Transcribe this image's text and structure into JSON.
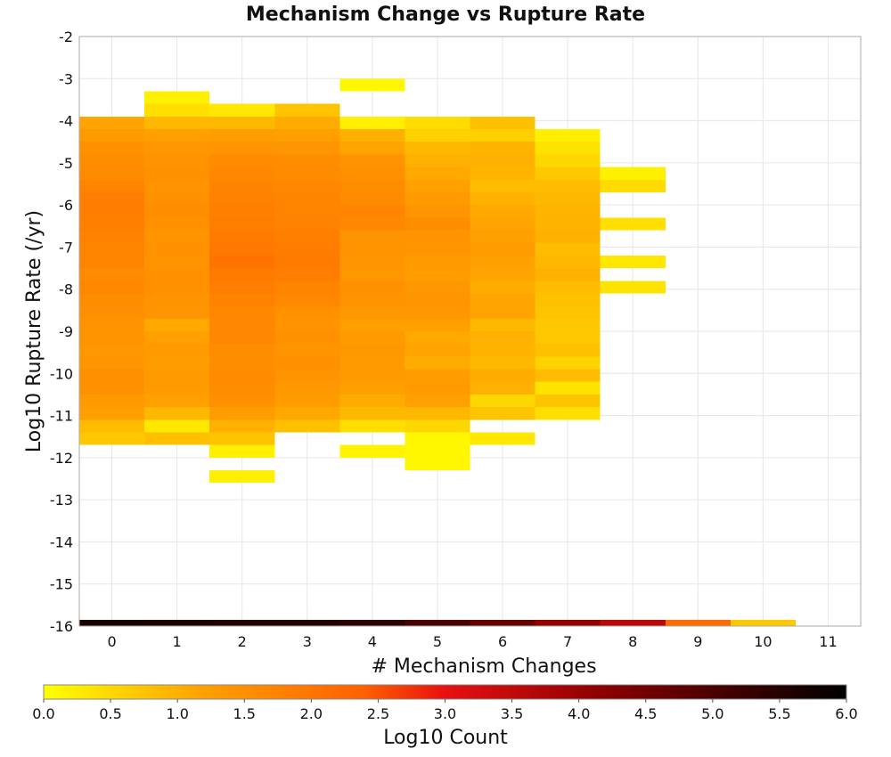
{
  "chart_data": {
    "type": "heatmap",
    "title": "Mechanism Change vs Rupture Rate",
    "xlabel": "# Mechanism Changes",
    "ylabel": "Log10 Rupture Rate (/yr)",
    "xlim": [
      -0.5,
      11.5
    ],
    "ylim": [
      -16,
      -2
    ],
    "x_ticks": [
      "0",
      "1",
      "2",
      "3",
      "4",
      "5",
      "6",
      "7",
      "8",
      "9",
      "10",
      "11"
    ],
    "y_ticks": [
      "-2",
      "-3",
      "-4",
      "-5",
      "-6",
      "-7",
      "-8",
      "-9",
      "-10",
      "-11",
      "-12",
      "-13",
      "-14",
      "-15",
      "-16"
    ],
    "grid": true,
    "y_bin_size": 0.3,
    "colorbar": {
      "label": "Log10 Count",
      "range": [
        0,
        6
      ],
      "ticks": [
        "0.0",
        "0.5",
        "1.0",
        "1.5",
        "2.0",
        "2.5",
        "3.0",
        "3.5",
        "4.0",
        "4.5",
        "5.0",
        "5.5",
        "6.0"
      ],
      "colors": [
        "#ffff00",
        "#ffa000",
        "#ff6000",
        "#e81010",
        "#8a0000",
        "#000000"
      ]
    },
    "columns": [
      {
        "x": 0,
        "bins": [
          {
            "y": -3.9,
            "v": 1.15
          },
          {
            "y": -4.2,
            "v": 1.3
          },
          {
            "y": -4.5,
            "v": 1.5
          },
          {
            "y": -4.8,
            "v": 1.55
          },
          {
            "y": -5.1,
            "v": 1.6
          },
          {
            "y": -5.4,
            "v": 1.7
          },
          {
            "y": -5.7,
            "v": 1.85
          },
          {
            "y": -6.0,
            "v": 1.85
          },
          {
            "y": -6.3,
            "v": 1.8
          },
          {
            "y": -6.6,
            "v": 1.75
          },
          {
            "y": -6.9,
            "v": 1.7
          },
          {
            "y": -7.2,
            "v": 1.7
          },
          {
            "y": -7.5,
            "v": 1.6
          },
          {
            "y": -7.8,
            "v": 1.65
          },
          {
            "y": -8.1,
            "v": 1.55
          },
          {
            "y": -8.4,
            "v": 1.5
          },
          {
            "y": -8.7,
            "v": 1.45
          },
          {
            "y": -9.0,
            "v": 1.45
          },
          {
            "y": -9.3,
            "v": 1.35
          },
          {
            "y": -9.6,
            "v": 1.4
          },
          {
            "y": -9.9,
            "v": 1.5
          },
          {
            "y": -10.2,
            "v": 1.5
          },
          {
            "y": -10.5,
            "v": 1.3
          },
          {
            "y": -10.8,
            "v": 1.2
          },
          {
            "y": -11.1,
            "v": 0.85
          },
          {
            "y": -11.4,
            "v": 0.7
          }
        ]
      },
      {
        "x": 1,
        "bins": [
          {
            "y": -3.3,
            "v": 0.2
          },
          {
            "y": -3.6,
            "v": 0.4
          },
          {
            "y": -3.9,
            "v": 0.9
          },
          {
            "y": -4.2,
            "v": 1.2
          },
          {
            "y": -4.5,
            "v": 1.35
          },
          {
            "y": -4.8,
            "v": 1.45
          },
          {
            "y": -5.1,
            "v": 1.5
          },
          {
            "y": -5.4,
            "v": 1.45
          },
          {
            "y": -5.7,
            "v": 1.5
          },
          {
            "y": -6.0,
            "v": 1.55
          },
          {
            "y": -6.3,
            "v": 1.5
          },
          {
            "y": -6.6,
            "v": 1.45
          },
          {
            "y": -6.9,
            "v": 1.5
          },
          {
            "y": -7.2,
            "v": 1.45
          },
          {
            "y": -7.5,
            "v": 1.5
          },
          {
            "y": -7.8,
            "v": 1.5
          },
          {
            "y": -8.1,
            "v": 1.45
          },
          {
            "y": -8.4,
            "v": 1.4
          },
          {
            "y": -8.7,
            "v": 1.1
          },
          {
            "y": -9.0,
            "v": 1.2
          },
          {
            "y": -9.3,
            "v": 1.3
          },
          {
            "y": -9.6,
            "v": 1.25
          },
          {
            "y": -9.9,
            "v": 1.3
          },
          {
            "y": -10.2,
            "v": 1.3
          },
          {
            "y": -10.5,
            "v": 1.2
          },
          {
            "y": -10.8,
            "v": 0.9
          },
          {
            "y": -11.1,
            "v": 0.3
          },
          {
            "y": -11.4,
            "v": 0.8
          }
        ]
      },
      {
        "x": 2,
        "bins": [
          {
            "y": -3.6,
            "v": 0.3
          },
          {
            "y": -3.9,
            "v": 0.9
          },
          {
            "y": -4.2,
            "v": 1.25
          },
          {
            "y": -4.5,
            "v": 1.4
          },
          {
            "y": -4.8,
            "v": 1.6
          },
          {
            "y": -5.1,
            "v": 1.65
          },
          {
            "y": -5.4,
            "v": 1.7
          },
          {
            "y": -5.7,
            "v": 1.75
          },
          {
            "y": -6.0,
            "v": 1.8
          },
          {
            "y": -6.3,
            "v": 1.85
          },
          {
            "y": -6.6,
            "v": 1.9
          },
          {
            "y": -6.9,
            "v": 1.95
          },
          {
            "y": -7.2,
            "v": 2.05
          },
          {
            "y": -7.5,
            "v": 1.9
          },
          {
            "y": -7.8,
            "v": 1.85
          },
          {
            "y": -8.1,
            "v": 1.75
          },
          {
            "y": -8.4,
            "v": 1.65
          },
          {
            "y": -8.7,
            "v": 1.65
          },
          {
            "y": -9.0,
            "v": 1.65
          },
          {
            "y": -9.3,
            "v": 1.55
          },
          {
            "y": -9.6,
            "v": 1.55
          },
          {
            "y": -9.9,
            "v": 1.6
          },
          {
            "y": -10.2,
            "v": 1.55
          },
          {
            "y": -10.5,
            "v": 1.5
          },
          {
            "y": -10.8,
            "v": 1.25
          },
          {
            "y": -11.1,
            "v": 1.0
          },
          {
            "y": -11.4,
            "v": 0.75
          },
          {
            "y": -11.7,
            "v": 0.2
          },
          {
            "y": -12.3,
            "v": 0.2
          }
        ]
      },
      {
        "x": 3,
        "bins": [
          {
            "y": -3.6,
            "v": 0.75
          },
          {
            "y": -3.9,
            "v": 1.05
          },
          {
            "y": -4.2,
            "v": 1.2
          },
          {
            "y": -4.5,
            "v": 1.4
          },
          {
            "y": -4.8,
            "v": 1.55
          },
          {
            "y": -5.1,
            "v": 1.6
          },
          {
            "y": -5.4,
            "v": 1.65
          },
          {
            "y": -5.7,
            "v": 1.7
          },
          {
            "y": -6.0,
            "v": 1.7
          },
          {
            "y": -6.3,
            "v": 1.75
          },
          {
            "y": -6.6,
            "v": 1.8
          },
          {
            "y": -6.9,
            "v": 1.85
          },
          {
            "y": -7.2,
            "v": 1.9
          },
          {
            "y": -7.5,
            "v": 1.85
          },
          {
            "y": -7.8,
            "v": 1.7
          },
          {
            "y": -8.1,
            "v": 1.65
          },
          {
            "y": -8.4,
            "v": 1.5
          },
          {
            "y": -8.7,
            "v": 1.45
          },
          {
            "y": -9.0,
            "v": 1.5
          },
          {
            "y": -9.3,
            "v": 1.45
          },
          {
            "y": -9.6,
            "v": 1.5
          },
          {
            "y": -9.9,
            "v": 1.45
          },
          {
            "y": -10.2,
            "v": 1.35
          },
          {
            "y": -10.5,
            "v": 1.25
          },
          {
            "y": -10.8,
            "v": 1.1
          },
          {
            "y": -11.1,
            "v": 0.8
          }
        ]
      },
      {
        "x": 4,
        "bins": [
          {
            "y": -3.0,
            "v": 0.1
          },
          {
            "y": -3.9,
            "v": 0.2
          },
          {
            "y": -4.2,
            "v": 1.0
          },
          {
            "y": -4.5,
            "v": 1.15
          },
          {
            "y": -4.8,
            "v": 1.45
          },
          {
            "y": -5.1,
            "v": 1.5
          },
          {
            "y": -5.4,
            "v": 1.55
          },
          {
            "y": -5.7,
            "v": 1.6
          },
          {
            "y": -6.0,
            "v": 1.7
          },
          {
            "y": -6.3,
            "v": 1.65
          },
          {
            "y": -6.6,
            "v": 1.45
          },
          {
            "y": -6.9,
            "v": 1.45
          },
          {
            "y": -7.2,
            "v": 1.4
          },
          {
            "y": -7.5,
            "v": 1.35
          },
          {
            "y": -7.8,
            "v": 1.5
          },
          {
            "y": -8.1,
            "v": 1.45
          },
          {
            "y": -8.4,
            "v": 1.35
          },
          {
            "y": -8.7,
            "v": 1.2
          },
          {
            "y": -9.0,
            "v": 1.3
          },
          {
            "y": -9.3,
            "v": 1.35
          },
          {
            "y": -9.6,
            "v": 1.3
          },
          {
            "y": -9.9,
            "v": 1.3
          },
          {
            "y": -10.2,
            "v": 1.2
          },
          {
            "y": -10.5,
            "v": 1.05
          },
          {
            "y": -10.8,
            "v": 0.9
          },
          {
            "y": -11.1,
            "v": 0.4
          },
          {
            "y": -11.7,
            "v": 0.15
          }
        ]
      },
      {
        "x": 5,
        "bins": [
          {
            "y": -3.9,
            "v": 0.45
          },
          {
            "y": -4.2,
            "v": 0.6
          },
          {
            "y": -4.5,
            "v": 0.9
          },
          {
            "y": -4.8,
            "v": 1.0
          },
          {
            "y": -5.1,
            "v": 1.1
          },
          {
            "y": -5.4,
            "v": 1.2
          },
          {
            "y": -5.7,
            "v": 1.3
          },
          {
            "y": -6.0,
            "v": 1.4
          },
          {
            "y": -6.3,
            "v": 1.55
          },
          {
            "y": -6.6,
            "v": 1.45
          },
          {
            "y": -6.9,
            "v": 1.4
          },
          {
            "y": -7.2,
            "v": 1.3
          },
          {
            "y": -7.5,
            "v": 1.25
          },
          {
            "y": -7.8,
            "v": 1.35
          },
          {
            "y": -8.1,
            "v": 1.4
          },
          {
            "y": -8.4,
            "v": 1.35
          },
          {
            "y": -8.7,
            "v": 1.2
          },
          {
            "y": -9.0,
            "v": 1.1
          },
          {
            "y": -9.3,
            "v": 1.15
          },
          {
            "y": -9.6,
            "v": 1.05
          },
          {
            "y": -9.9,
            "v": 1.25
          },
          {
            "y": -10.2,
            "v": 1.3
          },
          {
            "y": -10.5,
            "v": 1.2
          },
          {
            "y": -10.8,
            "v": 0.9
          },
          {
            "y": -11.1,
            "v": 0.5
          },
          {
            "y": -11.4,
            "v": 0.1
          },
          {
            "y": -11.7,
            "v": 0.1
          },
          {
            "y": -12.0,
            "v": 0.1
          }
        ]
      },
      {
        "x": 6,
        "bins": [
          {
            "y": -3.9,
            "v": 0.8
          },
          {
            "y": -4.2,
            "v": 0.6
          },
          {
            "y": -4.5,
            "v": 0.95
          },
          {
            "y": -4.8,
            "v": 1.0
          },
          {
            "y": -5.1,
            "v": 0.95
          },
          {
            "y": -5.4,
            "v": 0.85
          },
          {
            "y": -5.7,
            "v": 1.0
          },
          {
            "y": -6.0,
            "v": 1.1
          },
          {
            "y": -6.3,
            "v": 1.15
          },
          {
            "y": -6.6,
            "v": 1.2
          },
          {
            "y": -6.9,
            "v": 1.25
          },
          {
            "y": -7.2,
            "v": 1.2
          },
          {
            "y": -7.5,
            "v": 1.15
          },
          {
            "y": -7.8,
            "v": 1.05
          },
          {
            "y": -8.1,
            "v": 1.15
          },
          {
            "y": -8.4,
            "v": 1.15
          },
          {
            "y": -8.7,
            "v": 0.9
          },
          {
            "y": -9.0,
            "v": 1.0
          },
          {
            "y": -9.3,
            "v": 0.95
          },
          {
            "y": -9.6,
            "v": 0.9
          },
          {
            "y": -9.9,
            "v": 1.05
          },
          {
            "y": -10.2,
            "v": 1.0
          },
          {
            "y": -10.5,
            "v": 0.5
          },
          {
            "y": -10.8,
            "v": 0.75
          },
          {
            "y": -11.4,
            "v": 0.3
          }
        ]
      },
      {
        "x": 7,
        "bins": [
          {
            "y": -4.2,
            "v": 0.2
          },
          {
            "y": -4.5,
            "v": 0.35
          },
          {
            "y": -4.8,
            "v": 0.5
          },
          {
            "y": -5.1,
            "v": 0.7
          },
          {
            "y": -5.4,
            "v": 0.85
          },
          {
            "y": -5.7,
            "v": 0.9
          },
          {
            "y": -6.0,
            "v": 0.95
          },
          {
            "y": -6.3,
            "v": 0.95
          },
          {
            "y": -6.6,
            "v": 1.0
          },
          {
            "y": -6.9,
            "v": 0.85
          },
          {
            "y": -7.2,
            "v": 0.9
          },
          {
            "y": -7.5,
            "v": 1.0
          },
          {
            "y": -7.8,
            "v": 0.85
          },
          {
            "y": -8.1,
            "v": 0.8
          },
          {
            "y": -8.4,
            "v": 0.75
          },
          {
            "y": -8.7,
            "v": 0.7
          },
          {
            "y": -9.0,
            "v": 0.7
          },
          {
            "y": -9.3,
            "v": 0.8
          },
          {
            "y": -9.6,
            "v": 0.55
          },
          {
            "y": -9.9,
            "v": 0.85
          },
          {
            "y": -10.2,
            "v": 0.35
          },
          {
            "y": -10.5,
            "v": 0.75
          },
          {
            "y": -10.8,
            "v": 0.4
          }
        ]
      },
      {
        "x": 8,
        "bins": [
          {
            "y": -5.1,
            "v": 0.2
          },
          {
            "y": -5.4,
            "v": 0.45
          },
          {
            "y": -6.3,
            "v": 0.4
          },
          {
            "y": -7.2,
            "v": 0.3
          },
          {
            "y": -7.8,
            "v": 0.35
          }
        ]
      }
    ],
    "bottom_row": {
      "y_range": [
        -16,
        -15.85
      ],
      "x": [
        0,
        1,
        2,
        3,
        4,
        5,
        6,
        7,
        8,
        9,
        10
      ],
      "values": [
        5.65,
        5.6,
        5.55,
        5.5,
        5.45,
        5.05,
        4.7,
        4.1,
        3.6,
        2.2,
        0.7
      ]
    }
  }
}
